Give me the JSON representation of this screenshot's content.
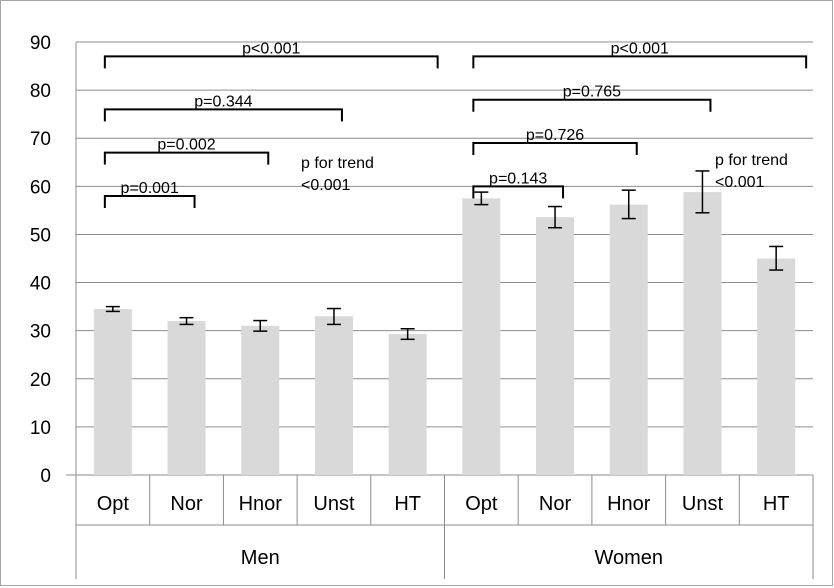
{
  "chart_data": {
    "type": "bar",
    "groups": [
      {
        "name": "Men",
        "categories": [
          "Opt",
          "Nor",
          "Hnor",
          "Unst",
          "HT"
        ]
      },
      {
        "name": "Women",
        "categories": [
          "Opt",
          "Nor",
          "Hnor",
          "Unst",
          "HT"
        ]
      }
    ],
    "categories": [
      "Opt",
      "Nor",
      "Hnor",
      "Unst",
      "HT",
      "Opt",
      "Nor",
      "Hnor",
      "Unst",
      "HT"
    ],
    "values": [
      34.5,
      32.0,
      31.0,
      33.0,
      29.3,
      57.5,
      53.6,
      56.2,
      58.8,
      45.0
    ],
    "error_low": [
      34.0,
      31.3,
      29.9,
      31.3,
      28.2,
      56.2,
      51.4,
      53.3,
      54.5,
      42.6
    ],
    "error_high": [
      35.0,
      32.7,
      32.1,
      34.6,
      30.4,
      58.8,
      55.8,
      59.2,
      63.2,
      47.5
    ],
    "ylim": [
      0,
      90
    ],
    "yticks": [
      0,
      10,
      20,
      30,
      40,
      50,
      60,
      70,
      80,
      90
    ],
    "grid": true,
    "bar_color": "#d9d9d9",
    "grid_color": "#8c8c8c",
    "annotations": [
      {
        "text": "p<0.001",
        "group": 0,
        "from": 0,
        "to": 4,
        "level": 87
      },
      {
        "text": "p=0.344",
        "group": 0,
        "from": 0,
        "to": 3,
        "level": 76
      },
      {
        "text": "p=0.002",
        "group": 0,
        "from": 0,
        "to": 2,
        "level": 67
      },
      {
        "text": "p=0.001",
        "group": 0,
        "from": 0,
        "to": 1,
        "level": 58
      },
      {
        "text": "p<0.001",
        "group": 1,
        "from": 0,
        "to": 4,
        "level": 87
      },
      {
        "text": "p=0.765",
        "group": 1,
        "from": 0,
        "to": 3,
        "level": 78
      },
      {
        "text": "p=0.726",
        "group": 1,
        "from": 0,
        "to": 2,
        "level": 69
      },
      {
        "text": "p=0.143",
        "group": 1,
        "from": 0,
        "to": 1,
        "level": 60
      }
    ],
    "trend_notes": [
      {
        "line1": "p for trend",
        "line2": "<0.001",
        "group": 0
      },
      {
        "line1": "p for trend",
        "line2": "<0.001",
        "group": 1
      }
    ]
  }
}
